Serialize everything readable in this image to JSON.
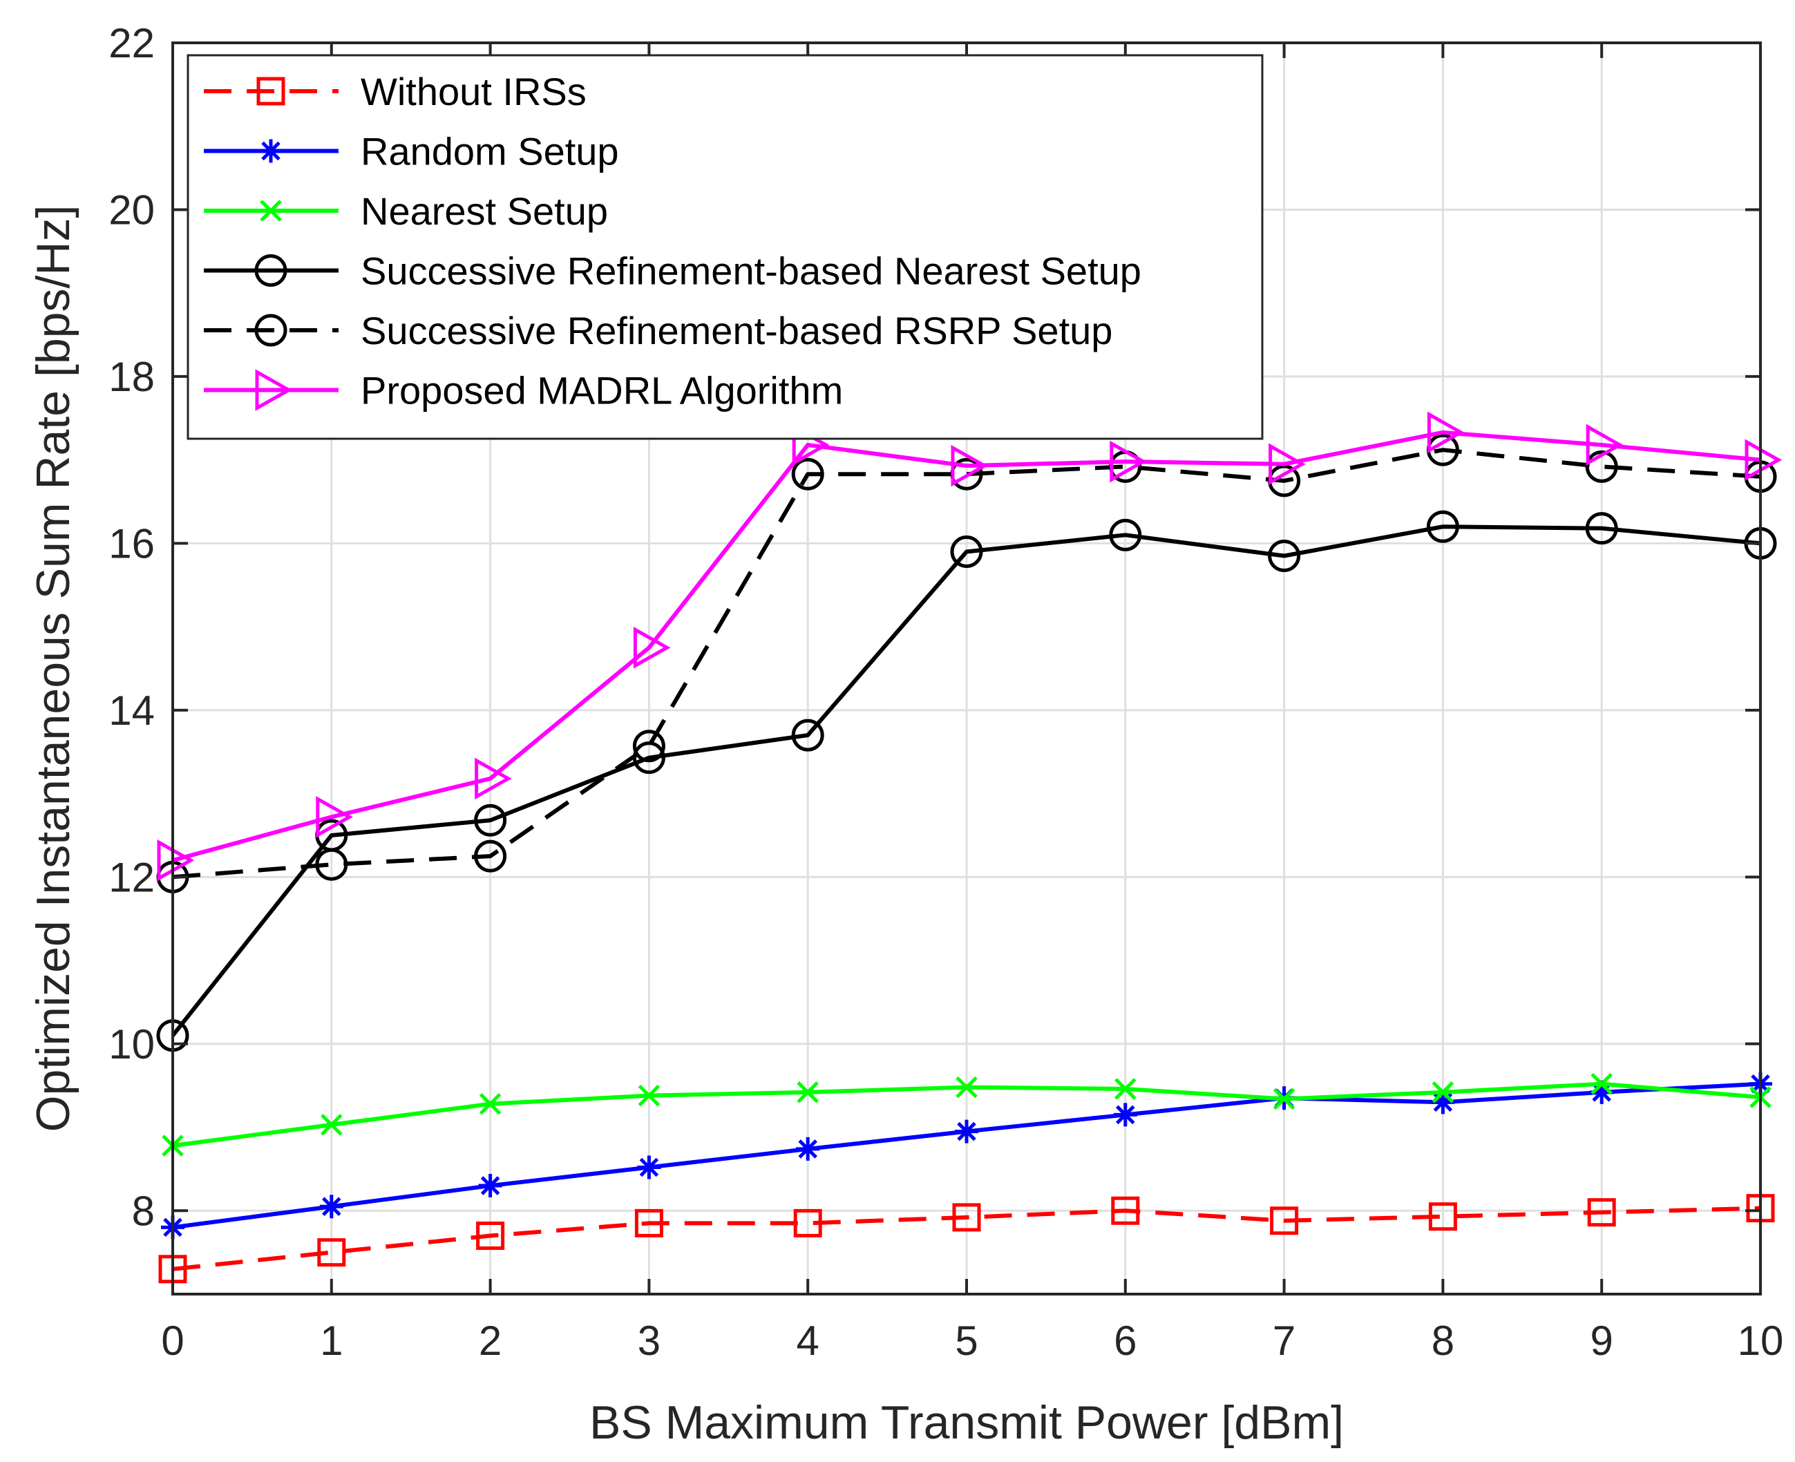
{
  "chart_data": {
    "type": "line",
    "title": "",
    "xlabel": "BS Maximum Transmit Power [dBm]",
    "ylabel": "Optimized Instantaneous Sum Rate [bps/Hz]",
    "xlim": [
      0,
      10
    ],
    "ylim": [
      7,
      22
    ],
    "xticks": [
      "0",
      "1",
      "2",
      "3",
      "4",
      "5",
      "6",
      "7",
      "8",
      "9",
      "10"
    ],
    "yticks": [
      "8",
      "10",
      "12",
      "14",
      "16",
      "18",
      "20",
      "22"
    ],
    "grid": true,
    "legend_position": "top-left",
    "x": [
      0,
      1,
      2,
      3,
      4,
      5,
      6,
      7,
      8,
      9,
      10
    ],
    "series": [
      {
        "name": "Without IRSs",
        "color": "#ff0000",
        "dash": "dashed",
        "marker": "square",
        "values": [
          7.3,
          7.5,
          7.7,
          7.85,
          7.85,
          7.92,
          8.0,
          7.88,
          7.93,
          7.98,
          8.03
        ]
      },
      {
        "name": "Random Setup",
        "color": "#0000ff",
        "dash": "solid",
        "marker": "asterisk",
        "values": [
          7.8,
          8.05,
          8.3,
          8.52,
          8.74,
          8.95,
          9.15,
          9.35,
          9.3,
          9.42,
          9.52
        ]
      },
      {
        "name": "Nearest Setup",
        "color": "#00ff00",
        "dash": "solid",
        "marker": "cross",
        "values": [
          8.78,
          9.03,
          9.28,
          9.38,
          9.42,
          9.48,
          9.46,
          9.34,
          9.42,
          9.52,
          9.36
        ]
      },
      {
        "name": "Successive Refinement-based Nearest Setup",
        "color": "#000000",
        "dash": "solid",
        "marker": "circle",
        "values": [
          10.1,
          12.5,
          12.68,
          13.43,
          13.7,
          15.9,
          16.1,
          15.85,
          16.2,
          16.18,
          16.0
        ]
      },
      {
        "name": "Successive Refinement-based RSRP Setup",
        "color": "#000000",
        "dash": "dashed",
        "marker": "circle",
        "values": [
          12.0,
          12.15,
          12.25,
          13.57,
          16.83,
          16.83,
          16.92,
          16.75,
          17.12,
          16.92,
          16.8
        ]
      },
      {
        "name": "Proposed MADRL Algorithm",
        "color": "#ff00ff",
        "dash": "solid",
        "marker": "triangle-right",
        "values": [
          12.2,
          12.72,
          13.18,
          14.75,
          17.18,
          16.93,
          16.98,
          16.95,
          17.33,
          17.18,
          17.0
        ]
      }
    ]
  }
}
